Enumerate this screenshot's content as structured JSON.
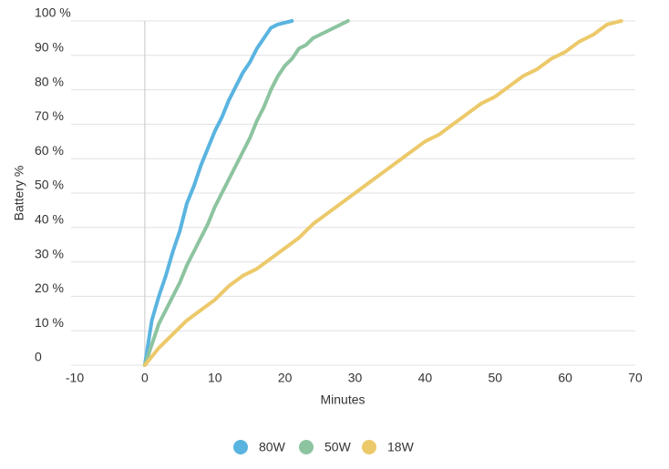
{
  "chart_data": {
    "type": "line",
    "x_label": "Minutes",
    "y_label": "Battery %",
    "xlim": [
      -10,
      70
    ],
    "xticks": [
      -10,
      0,
      10,
      20,
      30,
      40,
      50,
      60,
      70
    ],
    "ylim": [
      0,
      100
    ],
    "yticks": [
      0,
      {
        "value": 10,
        "label": "10 %"
      },
      {
        "value": 20,
        "label": "20 %"
      },
      {
        "value": 30,
        "label": "30 %"
      },
      {
        "value": 40,
        "label": "40 %"
      },
      {
        "value": 50,
        "label": "50 %"
      },
      {
        "value": 60,
        "label": "60 %"
      },
      {
        "value": 70,
        "label": "70 %"
      },
      {
        "value": 80,
        "label": "80 %"
      },
      {
        "value": 90,
        "label": "90 %"
      },
      {
        "value": 100,
        "label": "100 %"
      }
    ],
    "grid": true,
    "legend": "bottom",
    "series": [
      {
        "name": "80W",
        "color": "#5ab4e0",
        "x": [
          0,
          1,
          2,
          3,
          4,
          5,
          6,
          7,
          8,
          9,
          10,
          11,
          12,
          13,
          14,
          15,
          16,
          17,
          18,
          19,
          21
        ],
        "values": [
          0,
          13,
          20,
          26,
          33,
          39,
          47,
          52,
          58,
          63,
          68,
          72,
          77,
          81,
          85,
          88,
          92,
          95,
          98,
          99,
          100
        ]
      },
      {
        "name": "50W",
        "color": "#8dc4a0",
        "x": [
          0,
          1,
          2,
          3,
          4,
          5,
          6,
          7,
          8,
          9,
          10,
          11,
          12,
          13,
          14,
          15,
          16,
          17,
          18,
          19,
          20,
          21,
          22,
          23,
          24,
          25,
          27,
          29
        ],
        "values": [
          0,
          6,
          12,
          16,
          20,
          24,
          29,
          33,
          37,
          41,
          46,
          50,
          54,
          58,
          62,
          66,
          71,
          75,
          80,
          84,
          87,
          89,
          92,
          93,
          95,
          96,
          98,
          100
        ]
      },
      {
        "name": "18W",
        "color": "#ecc96a",
        "x": [
          0,
          2,
          4,
          6,
          8,
          10,
          12,
          14,
          16,
          18,
          20,
          22,
          24,
          26,
          28,
          30,
          32,
          34,
          36,
          38,
          40,
          42,
          44,
          46,
          48,
          50,
          52,
          54,
          56,
          58,
          60,
          62,
          64,
          66,
          68
        ],
        "values": [
          0,
          5,
          9,
          13,
          16,
          19,
          23,
          26,
          28,
          31,
          34,
          37,
          41,
          44,
          47,
          50,
          53,
          56,
          59,
          62,
          65,
          67,
          70,
          73,
          76,
          78,
          81,
          84,
          86,
          89,
          91,
          94,
          96,
          99,
          100
        ]
      }
    ]
  }
}
